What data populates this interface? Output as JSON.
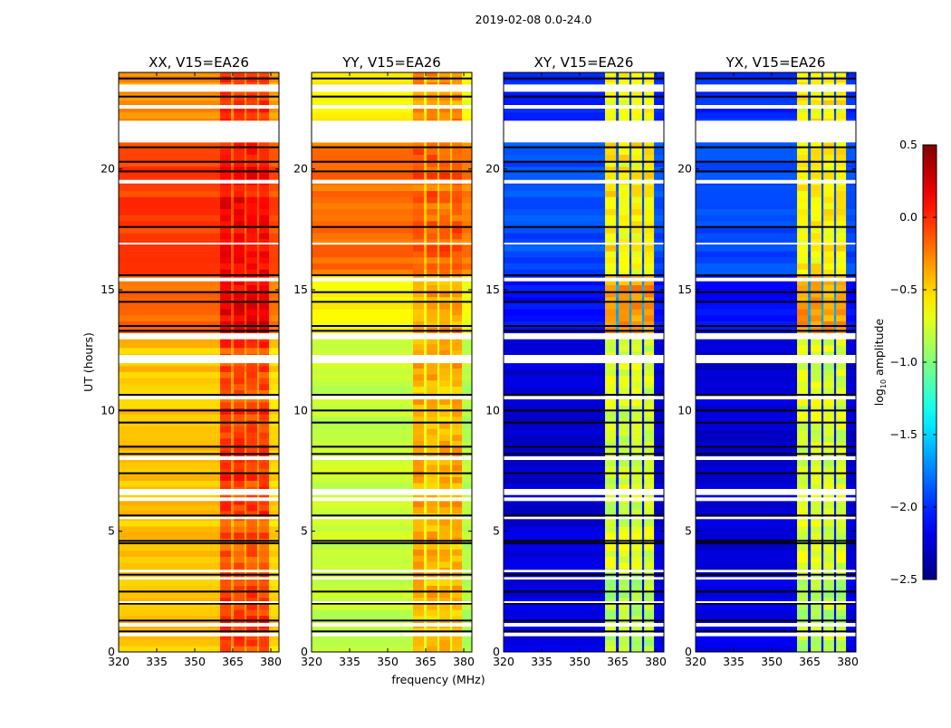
{
  "chart_data": {
    "type": "heatmap",
    "title": "2019-02-08 0.0-24.0",
    "xlabel": "frequency (MHz)",
    "ylabel": "UT (hours)",
    "xlim": [
      320,
      383.2
    ],
    "ylim": [
      0,
      24
    ],
    "xticks": [
      320,
      335,
      350,
      365,
      380
    ],
    "yticks": [
      0,
      5,
      10,
      15,
      20
    ],
    "colorbar": {
      "label_main": "log",
      "label_sub": "10",
      "label_rest": " amplitude",
      "colormap": "jet",
      "range": [
        -2.5,
        0.5
      ],
      "ticks": [
        "0.5",
        "0.0",
        "−0.5",
        "−1.0",
        "−1.5",
        "−2.0",
        "−2.5"
      ],
      "tick_values": [
        0.5,
        0.0,
        -0.5,
        -1.0,
        -1.5,
        -2.0,
        -2.5
      ]
    },
    "frequency_bands_MHz": [
      {
        "f0": 320,
        "f1": 360,
        "kind": "low"
      },
      {
        "f0": 360,
        "f1": 364.3,
        "kind": "high"
      },
      {
        "f0": 364.3,
        "f1": 365.4,
        "kind": "notch"
      },
      {
        "f0": 365.4,
        "f1": 369.6,
        "kind": "high"
      },
      {
        "f0": 369.6,
        "f1": 370.4,
        "kind": "notch"
      },
      {
        "f0": 370.4,
        "f1": 374.6,
        "kind": "high"
      },
      {
        "f0": 374.6,
        "f1": 375.4,
        "kind": "notch"
      },
      {
        "f0": 375.4,
        "f1": 379.3,
        "kind": "high"
      },
      {
        "f0": 379.3,
        "f1": 383.2,
        "kind": "low"
      }
    ],
    "flagged_hours": [
      [
        23.2,
        23.5
      ],
      [
        22.5,
        22.65
      ],
      [
        21.1,
        22.0
      ],
      [
        19.4,
        19.55
      ],
      [
        16.9,
        16.95
      ],
      [
        15.35,
        15.5
      ],
      [
        12.95,
        13.2
      ],
      [
        11.96,
        12.3
      ],
      [
        10.46,
        10.6
      ],
      [
        7.95,
        8.1
      ],
      [
        6.5,
        6.75
      ],
      [
        6.25,
        6.4
      ],
      [
        5.5,
        5.6
      ],
      [
        3.3,
        3.4
      ],
      [
        3.0,
        3.1
      ],
      [
        2.05,
        2.1
      ],
      [
        1.05,
        1.2
      ],
      [
        0.65,
        0.8
      ]
    ],
    "blank_rows_hours": [
      23.75,
      23.0,
      20.9,
      20.3,
      19.9,
      17.6,
      15.6,
      14.9,
      14.5,
      13.5,
      13.3,
      10.65,
      10.0,
      9.5,
      8.5,
      8.2,
      7.4,
      5.65,
      4.6,
      4.5,
      3.2,
      2.5,
      2.0,
      1.3,
      0.85
    ],
    "series": [
      {
        "name": "XX, V15=EA26",
        "notch_offset": -0.25,
        "segments": [
          [
            0,
            3.2,
            -0.45,
            -0.05
          ],
          [
            3.2,
            5.6,
            -0.45,
            -0.15
          ],
          [
            5.6,
            13.2,
            -0.45,
            -0.05
          ],
          [
            13.2,
            15.6,
            -0.2,
            0.15
          ],
          [
            15.6,
            21.1,
            -0.05,
            0.1
          ],
          [
            21.1,
            24,
            -0.3,
            -0.05
          ]
        ]
      },
      {
        "name": "YY, V15=EA26",
        "notch_offset": -0.3,
        "segments": [
          [
            0,
            13.2,
            -0.8,
            -0.4
          ],
          [
            13.2,
            15.6,
            -0.6,
            -0.35
          ],
          [
            15.6,
            21.1,
            -0.2,
            -0.15
          ],
          [
            21.1,
            24,
            -0.6,
            -0.3
          ]
        ]
      },
      {
        "name": "XY, V15=EA26",
        "notch_offset": -1.3,
        "segments": [
          [
            0,
            3.2,
            -2.2,
            -0.85
          ],
          [
            3.2,
            13.2,
            -2.25,
            -0.75
          ],
          [
            13.2,
            15.6,
            -2.1,
            -0.35
          ],
          [
            15.6,
            21.1,
            -1.9,
            -0.6
          ],
          [
            21.1,
            24,
            -2.0,
            -0.6
          ]
        ]
      },
      {
        "name": "YX, V15=EA26",
        "notch_offset": -1.3,
        "segments": [
          [
            0,
            3.2,
            -2.2,
            -0.85
          ],
          [
            3.2,
            13.2,
            -2.25,
            -0.75
          ],
          [
            13.2,
            15.6,
            -2.1,
            -0.35
          ],
          [
            15.6,
            21.1,
            -1.9,
            -0.6
          ],
          [
            21.1,
            24,
            -2.0,
            -0.6
          ]
        ]
      }
    ]
  }
}
